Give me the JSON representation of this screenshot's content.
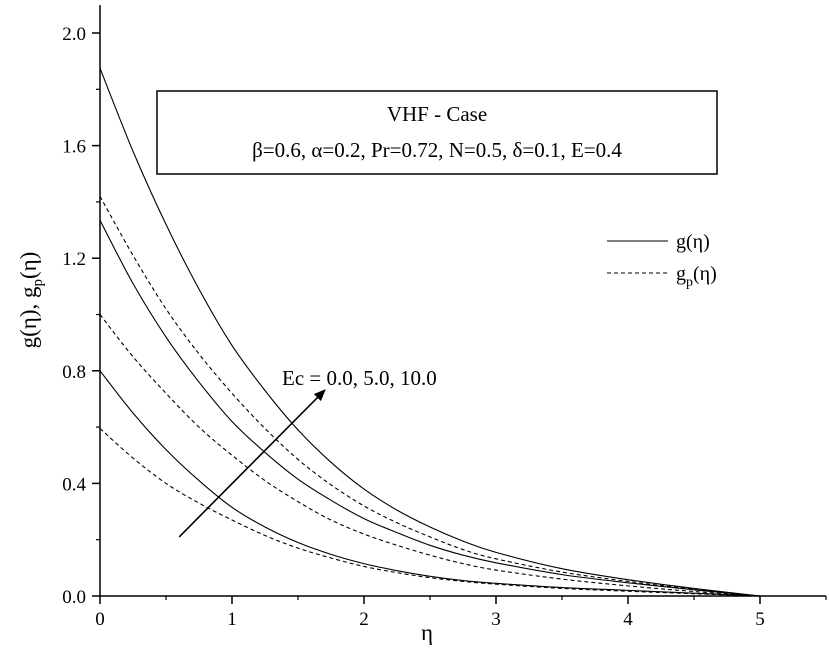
{
  "chart_data": {
    "type": "line",
    "title": "",
    "xlabel": "η",
    "ylabel": "g(η), g",
    "ylabel_sub": "p",
    "ylabel_tail": "(η)",
    "xlim": [
      0,
      5.5
    ],
    "ylim": [
      0,
      2.0
    ],
    "x_ticks": [
      0,
      1,
      2,
      3,
      4,
      5
    ],
    "y_ticks": [
      0.0,
      0.4,
      0.8,
      1.2,
      1.6,
      2.0
    ],
    "x_tick_labels": [
      "0",
      "1",
      "2",
      "3",
      "4",
      "5"
    ],
    "y_tick_labels": [
      "0.0",
      "0.4",
      "0.8",
      "1.2",
      "1.6",
      "2.0"
    ],
    "info_box": {
      "line1": "VHF - Case",
      "line2": "β=0.6, α=0.2, Pr=0.72, N=0.5, δ=0.1, E=0.4"
    },
    "legend": {
      "placement": "right",
      "entries": [
        {
          "label": "g(η)",
          "style": "solid"
        },
        {
          "label_main": "g",
          "label_sub": "p",
          "label_tail": "(η)",
          "style": "dashed"
        }
      ]
    },
    "annotation": {
      "text": "Ec = 0.0, 5.0, 10.0",
      "arrow_from": [
        0.6,
        0.21
      ],
      "arrow_to": [
        1.7,
        0.73
      ]
    },
    "series": [
      {
        "group": "g",
        "style": "solid",
        "x": [
          0,
          0.25,
          0.5,
          0.75,
          1.0,
          1.25,
          1.5,
          1.75,
          2.0,
          2.25,
          2.5,
          2.75,
          3.0,
          3.5,
          4.0,
          4.5,
          5.0
        ],
        "y": [
          0.8,
          0.65,
          0.52,
          0.41,
          0.315,
          0.245,
          0.19,
          0.148,
          0.115,
          0.09,
          0.07,
          0.055,
          0.045,
          0.03,
          0.02,
          0.01,
          0.0
        ]
      },
      {
        "group": "g",
        "style": "solid",
        "x": [
          0,
          0.25,
          0.5,
          0.75,
          1.0,
          1.25,
          1.5,
          1.75,
          2.0,
          2.25,
          2.5,
          2.75,
          3.0,
          3.5,
          4.0,
          4.5,
          5.0
        ],
        "y": [
          1.335,
          1.11,
          0.92,
          0.76,
          0.62,
          0.51,
          0.415,
          0.34,
          0.275,
          0.225,
          0.18,
          0.145,
          0.118,
          0.076,
          0.047,
          0.022,
          0.0
        ]
      },
      {
        "group": "g",
        "style": "solid",
        "x": [
          0,
          0.25,
          0.5,
          0.75,
          1.0,
          1.25,
          1.5,
          1.75,
          2.0,
          2.25,
          2.5,
          2.75,
          3.0,
          3.5,
          4.0,
          4.5,
          5.0
        ],
        "y": [
          1.875,
          1.58,
          1.32,
          1.09,
          0.89,
          0.73,
          0.59,
          0.475,
          0.38,
          0.305,
          0.245,
          0.195,
          0.155,
          0.097,
          0.058,
          0.027,
          0.0
        ]
      },
      {
        "group": "gp",
        "style": "dashed",
        "x": [
          0,
          0.25,
          0.5,
          0.75,
          1.0,
          1.25,
          1.5,
          1.75,
          2.0,
          2.25,
          2.5,
          2.75,
          3.0,
          3.5,
          4.0,
          4.5,
          5.0
        ],
        "y": [
          0.595,
          0.49,
          0.4,
          0.33,
          0.27,
          0.215,
          0.17,
          0.135,
          0.105,
          0.083,
          0.065,
          0.052,
          0.042,
          0.027,
          0.017,
          0.008,
          0.0
        ]
      },
      {
        "group": "gp",
        "style": "dashed",
        "x": [
          0,
          0.25,
          0.5,
          0.75,
          1.0,
          1.25,
          1.5,
          1.75,
          2.0,
          2.25,
          2.5,
          2.75,
          3.0,
          3.5,
          4.0,
          4.5,
          5.0
        ],
        "y": [
          1.0,
          0.85,
          0.72,
          0.6,
          0.5,
          0.41,
          0.335,
          0.27,
          0.22,
          0.18,
          0.145,
          0.115,
          0.092,
          0.06,
          0.036,
          0.016,
          0.0
        ]
      },
      {
        "group": "gp",
        "style": "dashed",
        "x": [
          0,
          0.25,
          0.5,
          0.75,
          1.0,
          1.25,
          1.5,
          1.75,
          2.0,
          2.25,
          2.5,
          2.75,
          3.0,
          3.5,
          4.0,
          4.5,
          5.0
        ],
        "y": [
          1.42,
          1.21,
          1.02,
          0.86,
          0.72,
          0.595,
          0.485,
          0.395,
          0.32,
          0.26,
          0.21,
          0.165,
          0.132,
          0.085,
          0.052,
          0.024,
          0.0
        ]
      }
    ]
  }
}
